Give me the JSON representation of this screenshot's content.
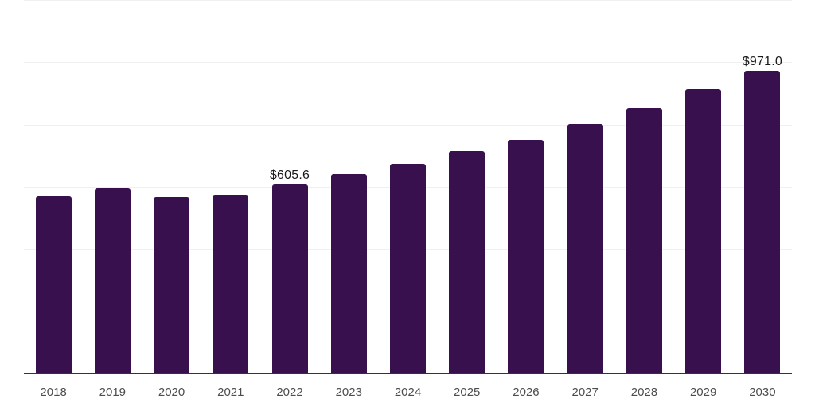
{
  "chart_data": {
    "type": "bar",
    "title": "",
    "xlabel": "",
    "ylabel": "",
    "categories": [
      "2018",
      "2019",
      "2020",
      "2021",
      "2022",
      "2023",
      "2024",
      "2025",
      "2026",
      "2027",
      "2028",
      "2029",
      "2030"
    ],
    "values": [
      566.0,
      592.0,
      564.0,
      573.0,
      605.6,
      639.0,
      672.0,
      712.0,
      748.0,
      800.0,
      850.0,
      912.0,
      971.0
    ],
    "data_labels": [
      {
        "category": "2022",
        "text": "$605.6"
      },
      {
        "category": "2030",
        "text": "$971.0"
      }
    ],
    "ylim": [
      0,
      1200
    ],
    "gridline_step": 200,
    "grid": "horizontal",
    "legend": "none",
    "colors": {
      "bar": "#38104e",
      "axis": "#333333",
      "gridline": "#f0f0f0",
      "year_label": "#4d4d4d",
      "value_label": "#1a1a1a",
      "background": "#ffffff"
    }
  }
}
